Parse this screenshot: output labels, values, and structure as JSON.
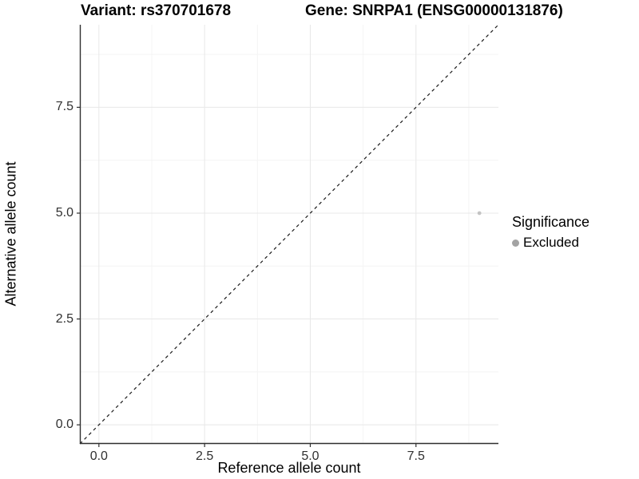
{
  "titles": {
    "variant": "Variant: rs370701678",
    "gene": "Gene: SNRPA1 (ENSG00000131876)"
  },
  "chart_data": {
    "type": "scatter",
    "title_left": "Variant: rs370701678",
    "title_right": "Gene: SNRPA1 (ENSG00000131876)",
    "xlabel": "Reference allele count",
    "ylabel": "Alternative allele count",
    "xlim": [
      -0.45,
      9.45
    ],
    "ylim": [
      -0.45,
      9.45
    ],
    "x_ticks": [
      0.0,
      2.5,
      5.0,
      7.5
    ],
    "x_tick_labels": [
      "0.0",
      "2.5",
      "5.0",
      "7.5"
    ],
    "y_ticks": [
      0.0,
      2.5,
      5.0,
      7.5
    ],
    "y_tick_labels": [
      "0.0",
      "2.5",
      "5.0",
      "7.5"
    ],
    "minor_ticks": [
      1.25,
      3.75,
      6.25,
      8.75
    ],
    "grid": "major and minor, light gray on white",
    "series": [
      {
        "name": "Excluded",
        "points": [
          {
            "x": 9.0,
            "y": 5.0
          }
        ],
        "color": "#c3c3c3"
      }
    ],
    "reference_line": {
      "type": "identity-diagonal y=x",
      "style": "dashed",
      "color": "#1a1a1a"
    },
    "legend": {
      "title": "Significance",
      "position": "right",
      "entries": [
        {
          "label": "Excluded",
          "color": "#a3a3a3"
        }
      ]
    },
    "colors": {
      "axis_line": "#2f2f2f",
      "tick_text": "#303030",
      "grid_major": "#e8e8e8",
      "grid_minor": "#f4f4f4",
      "background": "#ffffff"
    }
  }
}
